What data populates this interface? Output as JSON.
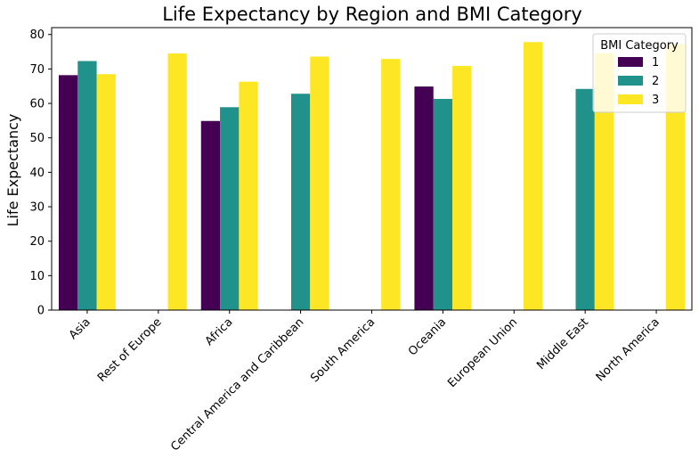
{
  "chart_data": {
    "type": "bar",
    "title": "Life Expectancy by Region and BMI Category",
    "xlabel": "",
    "ylabel": "Life Expectancy",
    "ylim": [
      0,
      82
    ],
    "yticks": [
      0,
      10,
      20,
      30,
      40,
      50,
      60,
      70,
      80
    ],
    "grid": false,
    "categories": [
      "Asia",
      "Rest of Europe",
      "Africa",
      "Central America and Caribbean",
      "South America",
      "Oceania",
      "European Union",
      "Middle East",
      "North America"
    ],
    "series": [
      {
        "name": "1",
        "color": "#440154",
        "values": [
          68.2,
          null,
          54.9,
          null,
          null,
          64.9,
          null,
          null,
          null
        ]
      },
      {
        "name": "2",
        "color": "#21918c",
        "values": [
          72.3,
          null,
          58.9,
          62.8,
          null,
          61.3,
          null,
          64.2,
          null
        ]
      },
      {
        "name": "3",
        "color": "#fde725",
        "values": [
          68.5,
          74.5,
          66.3,
          73.6,
          72.9,
          70.9,
          77.8,
          74.6,
          77.2
        ]
      }
    ],
    "legend": {
      "title": "BMI Category",
      "placement": "top-right"
    }
  }
}
